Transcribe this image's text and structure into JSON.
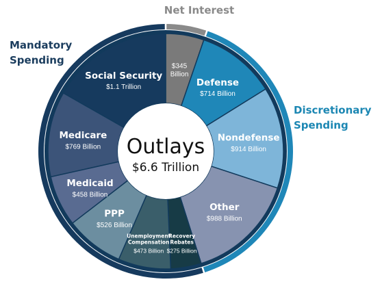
{
  "chart_data": {
    "type": "pie",
    "title": "Outlays",
    "total_label": "$6.6 Trillion",
    "unit": "Billion",
    "slices": [
      {
        "name": "Net Interest",
        "display_name": "",
        "label_lines": [],
        "value": 345,
        "value_label": "$345 Billion",
        "value_lines": [
          "$345",
          "Billion"
        ],
        "color": "#7a7a7a",
        "group": "Net Interest"
      },
      {
        "name": "Defense",
        "display_name": "Defense",
        "label_lines": [
          "Defense"
        ],
        "value": 714,
        "value_label": "$714 Billion",
        "value_lines": [
          "$714 Billion"
        ],
        "color": "#1f87b8",
        "group": "Discretionary Spending"
      },
      {
        "name": "Nondefense",
        "display_name": "Nondefense",
        "label_lines": [
          "Nondefense"
        ],
        "value": 914,
        "value_label": "$914 Billion",
        "value_lines": [
          "$914 Billion"
        ],
        "color": "#7eb5d9",
        "group": "Discretionary Spending"
      },
      {
        "name": "Other",
        "display_name": "Other",
        "label_lines": [
          "Other"
        ],
        "value": 988,
        "value_label": "$988 Billion",
        "value_lines": [
          "$988 Billion"
        ],
        "color": "#8793b0",
        "group": "Discretionary Spending"
      },
      {
        "name": "Recovery Rebates",
        "display_name": "Recovery Rebates",
        "label_lines": [
          "Recovery",
          "Rebates"
        ],
        "value": 275,
        "value_label": "$275 Billion",
        "value_lines": [
          "$275 Billion"
        ],
        "color": "#173b46",
        "group": "Mandatory Spending"
      },
      {
        "name": "Unemployment Compensation",
        "display_name": "Unemployment Compensation",
        "label_lines": [
          "Unemployment",
          "Compensation"
        ],
        "value": 473,
        "value_label": "$473 Billion",
        "value_lines": [
          "$473 Billion"
        ],
        "color": "#3a5e6a",
        "group": "Mandatory Spending"
      },
      {
        "name": "PPP",
        "display_name": "PPP",
        "label_lines": [
          "PPP"
        ],
        "value": 526,
        "value_label": "$526 Billion",
        "value_lines": [
          "$526 Billion"
        ],
        "color": "#6c8ea0",
        "group": "Mandatory Spending"
      },
      {
        "name": "Medicaid",
        "display_name": "Medicaid",
        "label_lines": [
          "Medicaid"
        ],
        "value": 458,
        "value_label": "$458 Billion",
        "value_lines": [
          "$458 Billion"
        ],
        "color": "#596b91",
        "group": "Mandatory Spending"
      },
      {
        "name": "Medicare",
        "display_name": "Medicare",
        "label_lines": [
          "Medicare"
        ],
        "value": 769,
        "value_label": "$769 Billion",
        "value_lines": [
          "$769 Billion"
        ],
        "color": "#3c5479",
        "group": "Mandatory Spending"
      },
      {
        "name": "Social Security",
        "display_name": "Social Security",
        "label_lines": [
          "Social Security"
        ],
        "value": 1100,
        "value_label": "$1.1 Trillion",
        "value_lines": [
          "$1.1 Trillion"
        ],
        "color": "#163a5e",
        "group": "Mandatory Spending"
      }
    ],
    "groups": [
      {
        "name": "Mandatory Spending",
        "lines": [
          "Mandatory",
          "Spending"
        ],
        "color": "#163a5e"
      },
      {
        "name": "Discretionary Spending",
        "lines": [
          "Discretionary",
          "Spending"
        ],
        "color": "#1f87b8"
      },
      {
        "name": "Net Interest",
        "lines": [
          "Net Interest"
        ],
        "color": "#8a8a8a"
      }
    ]
  }
}
